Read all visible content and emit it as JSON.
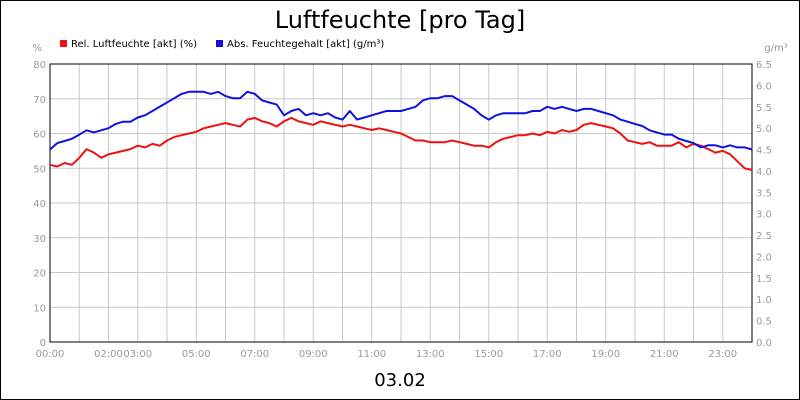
{
  "chart_data": {
    "type": "line",
    "title": "Luftfeuchte [pro Tag]",
    "footer": "03.02",
    "y_left_unit": "%",
    "y_right_unit": "g/m³",
    "y_left_lim": [
      0,
      80
    ],
    "y_right_lim": [
      0,
      6.5
    ],
    "y_left_ticks": [
      "0",
      "10",
      "20",
      "30",
      "40",
      "50",
      "60",
      "70",
      "80"
    ],
    "y_right_ticks": [
      "0.0",
      "0.5",
      "1.0",
      "1.5",
      "2.0",
      "2.5",
      "3.0",
      "3.5",
      "4.0",
      "4.5",
      "5.0",
      "5.5",
      "6.0",
      "6.5"
    ],
    "x_lim": [
      0,
      24
    ],
    "x_tick_labels": [
      {
        "x": 0,
        "label": "00:00"
      },
      {
        "x": 2,
        "label": "02:00"
      },
      {
        "x": 3,
        "label": "03:00"
      },
      {
        "x": 5,
        "label": "05:00"
      },
      {
        "x": 7,
        "label": "07:00"
      },
      {
        "x": 9,
        "label": "09:00"
      },
      {
        "x": 11,
        "label": "11:00"
      },
      {
        "x": 13,
        "label": "13:00"
      },
      {
        "x": 15,
        "label": "15:00"
      },
      {
        "x": 17,
        "label": "17:00"
      },
      {
        "x": 19,
        "label": "19:00"
      },
      {
        "x": 21,
        "label": "21:00"
      },
      {
        "x": 23,
        "label": "23:00"
      }
    ],
    "grid": true,
    "legend_position": "top-left",
    "series": [
      {
        "name": "Rel. Luftfeuchte [akt] (%)",
        "color": "#ee1111",
        "axis": "left",
        "x": [
          0,
          0.25,
          0.5,
          0.75,
          1.0,
          1.25,
          1.5,
          1.75,
          2.0,
          2.25,
          2.5,
          2.75,
          3.0,
          3.25,
          3.5,
          3.75,
          4.0,
          4.25,
          4.5,
          4.75,
          5.0,
          5.25,
          5.5,
          5.75,
          6.0,
          6.25,
          6.5,
          6.75,
          7.0,
          7.25,
          7.5,
          7.75,
          8.0,
          8.25,
          8.5,
          8.75,
          9.0,
          9.25,
          9.5,
          9.75,
          10.0,
          10.25,
          10.5,
          10.75,
          11.0,
          11.25,
          11.5,
          11.75,
          12.0,
          12.25,
          12.5,
          12.75,
          13.0,
          13.25,
          13.5,
          13.75,
          14.0,
          14.25,
          14.5,
          14.75,
          15.0,
          15.25,
          15.5,
          15.75,
          16.0,
          16.25,
          16.5,
          16.75,
          17.0,
          17.25,
          17.5,
          17.75,
          18.0,
          18.25,
          18.5,
          18.75,
          19.0,
          19.25,
          19.5,
          19.75,
          20.0,
          20.25,
          20.5,
          20.75,
          21.0,
          21.25,
          21.5,
          21.75,
          22.0,
          22.25,
          22.5,
          22.75,
          23.0,
          23.25,
          23.5,
          23.75,
          24.0
        ],
        "y": [
          51,
          50.5,
          51.5,
          51,
          53,
          55.5,
          54.5,
          53,
          54,
          54.5,
          55,
          55.5,
          56.5,
          56,
          57,
          56.5,
          58,
          59,
          59.5,
          60,
          60.5,
          61.5,
          62,
          62.5,
          63,
          62.5,
          62,
          64,
          64.5,
          63.5,
          63,
          62,
          63.5,
          64.5,
          63.5,
          63,
          62.5,
          63.5,
          63,
          62.5,
          62,
          62.5,
          62,
          61.5,
          61,
          61.5,
          61,
          60.5,
          60,
          59,
          58,
          58,
          57.5,
          57.5,
          57.5,
          58,
          57.5,
          57,
          56.5,
          56.5,
          56,
          57.5,
          58.5,
          59,
          59.5,
          59.5,
          60,
          59.5,
          60.5,
          60,
          61,
          60.5,
          61,
          62.5,
          63,
          62.5,
          62,
          61.5,
          60,
          58,
          57.5,
          57,
          57.5,
          56.5,
          56.5,
          56.5,
          57.5,
          56,
          57,
          56.5,
          55.5,
          54.5,
          55,
          54,
          52,
          50,
          49.5
        ]
      },
      {
        "name": "Abs. Feuchtegehalt [akt] (g/m³)",
        "color": "#1111dd",
        "axis": "right",
        "x": [
          0,
          0.25,
          0.5,
          0.75,
          1.0,
          1.25,
          1.5,
          1.75,
          2.0,
          2.25,
          2.5,
          2.75,
          3.0,
          3.25,
          3.5,
          3.75,
          4.0,
          4.25,
          4.5,
          4.75,
          5.0,
          5.25,
          5.5,
          5.75,
          6.0,
          6.25,
          6.5,
          6.75,
          7.0,
          7.25,
          7.5,
          7.75,
          8.0,
          8.25,
          8.5,
          8.75,
          9.0,
          9.25,
          9.5,
          9.75,
          10.0,
          10.25,
          10.5,
          10.75,
          11.0,
          11.25,
          11.5,
          11.75,
          12.0,
          12.25,
          12.5,
          12.75,
          13.0,
          13.25,
          13.5,
          13.75,
          14.0,
          14.25,
          14.5,
          14.75,
          15.0,
          15.25,
          15.5,
          15.75,
          16.0,
          16.25,
          16.5,
          16.75,
          17.0,
          17.25,
          17.5,
          17.75,
          18.0,
          18.25,
          18.5,
          18.75,
          19.0,
          19.25,
          19.5,
          19.75,
          20.0,
          20.25,
          20.5,
          20.75,
          21.0,
          21.25,
          21.5,
          21.75,
          22.0,
          22.25,
          22.5,
          22.75,
          23.0,
          23.25,
          23.5,
          23.75,
          24.0
        ],
        "y": [
          4.5,
          4.65,
          4.7,
          4.75,
          4.85,
          4.95,
          4.9,
          4.95,
          5.0,
          5.1,
          5.15,
          5.15,
          5.25,
          5.3,
          5.4,
          5.5,
          5.6,
          5.7,
          5.8,
          5.85,
          5.85,
          5.85,
          5.8,
          5.85,
          5.75,
          5.7,
          5.7,
          5.85,
          5.8,
          5.65,
          5.6,
          5.55,
          5.3,
          5.4,
          5.45,
          5.3,
          5.35,
          5.3,
          5.35,
          5.25,
          5.2,
          5.4,
          5.2,
          5.25,
          5.3,
          5.35,
          5.4,
          5.4,
          5.4,
          5.45,
          5.5,
          5.65,
          5.7,
          5.7,
          5.75,
          5.75,
          5.65,
          5.55,
          5.45,
          5.3,
          5.2,
          5.3,
          5.35,
          5.35,
          5.35,
          5.35,
          5.4,
          5.4,
          5.5,
          5.45,
          5.5,
          5.45,
          5.4,
          5.45,
          5.45,
          5.4,
          5.35,
          5.3,
          5.2,
          5.15,
          5.1,
          5.05,
          4.95,
          4.9,
          4.85,
          4.85,
          4.75,
          4.7,
          4.65,
          4.55,
          4.6,
          4.6,
          4.55,
          4.6,
          4.55,
          4.55,
          4.5
        ]
      }
    ]
  }
}
